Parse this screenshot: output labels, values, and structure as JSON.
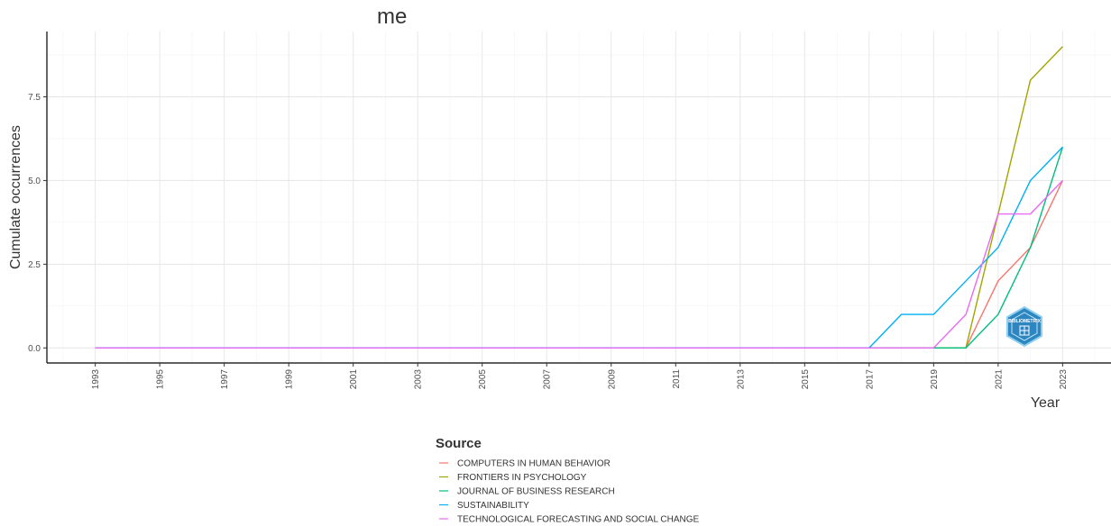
{
  "chart_data": {
    "type": "line",
    "title": "me",
    "xlabel": "Year",
    "ylabel": "Cumulate occurrences",
    "xlim": [
      1991.5,
      2024.5
    ],
    "ylim": [
      -0.45,
      9.45
    ],
    "x_ticks": [
      1993,
      1995,
      1997,
      1999,
      2001,
      2003,
      2005,
      2007,
      2009,
      2011,
      2013,
      2015,
      2017,
      2019,
      2021,
      2023
    ],
    "x_tick_labels": [
      "1993",
      "1995",
      "1997",
      "1999",
      "2001",
      "2003",
      "2005",
      "2007",
      "2009",
      "2011",
      "2013",
      "2015",
      "2017",
      "2019",
      "2021",
      "2023"
    ],
    "y_ticks": [
      0,
      2.5,
      5,
      7.5
    ],
    "y_tick_labels": [
      "0.0",
      "2.5",
      "5.0",
      "7.5"
    ],
    "grid": true,
    "legend_title": "Source",
    "legend_position": "bottom",
    "series": [
      {
        "name": "COMPUTERS IN HUMAN BEHAVIOR",
        "color": "#F8766D",
        "points": [
          [
            1993,
            0
          ],
          [
            2020,
            0
          ],
          [
            2021,
            2
          ],
          [
            2022,
            3
          ],
          [
            2023,
            5
          ]
        ]
      },
      {
        "name": "FRONTIERS IN PSYCHOLOGY",
        "color": "#A3A500",
        "points": [
          [
            1993,
            0
          ],
          [
            2020,
            0
          ],
          [
            2021,
            4
          ],
          [
            2022,
            8
          ],
          [
            2023,
            9
          ]
        ]
      },
      {
        "name": "JOURNAL OF BUSINESS RESEARCH",
        "color": "#00BF7D",
        "points": [
          [
            1993,
            0
          ],
          [
            2020,
            0
          ],
          [
            2021,
            1
          ],
          [
            2022,
            3
          ],
          [
            2023,
            6
          ]
        ]
      },
      {
        "name": "SUSTAINABILITY",
        "color": "#00B0F6",
        "points": [
          [
            1993,
            0
          ],
          [
            2017,
            0
          ],
          [
            2018,
            1
          ],
          [
            2019,
            1
          ],
          [
            2020,
            2
          ],
          [
            2021,
            3
          ],
          [
            2022,
            5
          ],
          [
            2023,
            6
          ]
        ]
      },
      {
        "name": "TECHNOLOGICAL FORECASTING AND SOCIAL CHANGE",
        "color": "#E76BF3",
        "points": [
          [
            1993,
            0
          ],
          [
            2019,
            0
          ],
          [
            2020,
            1
          ],
          [
            2021,
            4
          ],
          [
            2022,
            4
          ],
          [
            2023,
            5
          ]
        ]
      }
    ]
  },
  "watermark": {
    "text": "BIBLIOMETRIX",
    "icon": "bibliometrix-logo-icon",
    "color": "#2E86C1"
  }
}
